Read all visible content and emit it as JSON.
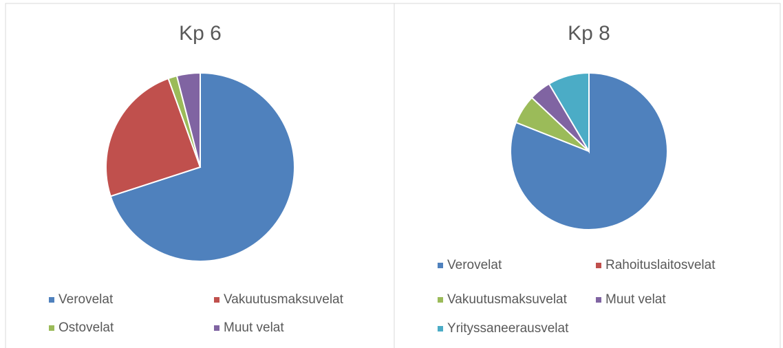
{
  "chart_data": [
    {
      "type": "pie",
      "title": "Kp 6",
      "categories": [
        "Verovelat",
        "Vakuutusmaksuvelat",
        "Ostovelat",
        "Muut velat"
      ],
      "values": [
        70,
        24.5,
        1.5,
        4
      ],
      "colors": [
        "#4f81bd",
        "#c0504d",
        "#9bbb59",
        "#8064a2"
      ]
    },
    {
      "type": "pie",
      "title": "Kp 8",
      "categories": [
        "Verovelat",
        "Rahoituslaitosvelat",
        "Vakuutusmaksuvelat",
        "Muut velat",
        "Yrityssaneerausvelat"
      ],
      "values": [
        81,
        0,
        6,
        4.5,
        8.5
      ],
      "colors": [
        "#4f81bd",
        "#c0504d",
        "#9bbb59",
        "#8064a2",
        "#4bacc6"
      ]
    }
  ]
}
